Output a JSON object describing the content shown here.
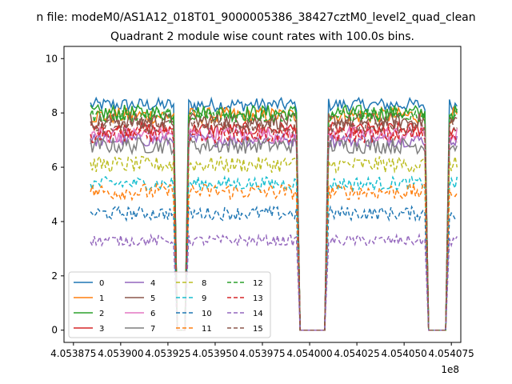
{
  "chart_data": {
    "type": "line",
    "suptitle": "n file: modeM0/AS1A12_018T01_9000005386_38427cztM0_level2_quad_clean",
    "title": "Quadrant 2 module wise count rates with 100.0s bins.",
    "xlabel": "",
    "ylabel": "",
    "x_offset_label": "1e8",
    "xlim": [
      405387000,
      405408000
    ],
    "ylim": [
      -0.45,
      10.45
    ],
    "xticks": [
      {
        "value": 405387500,
        "label": "4.053875"
      },
      {
        "value": 405390000,
        "label": "4.053900"
      },
      {
        "value": 405392500,
        "label": "4.053925"
      },
      {
        "value": 405395000,
        "label": "4.053950"
      },
      {
        "value": 405397500,
        "label": "4.053975"
      },
      {
        "value": 405400000,
        "label": "4.054000"
      },
      {
        "value": 405402500,
        "label": "4.054025"
      },
      {
        "value": 405405000,
        "label": "4.054050"
      },
      {
        "value": 405407500,
        "label": "4.054075"
      }
    ],
    "yticks": [
      {
        "value": 0,
        "label": "0"
      },
      {
        "value": 2,
        "label": "2"
      },
      {
        "value": 4,
        "label": "4"
      },
      {
        "value": 6,
        "label": "6"
      },
      {
        "value": 8,
        "label": "8"
      },
      {
        "value": 10,
        "label": "10"
      }
    ],
    "grid": false,
    "legend_position": "lower-left",
    "x_start": 405388400,
    "x_step": 100,
    "segments": [
      {
        "from": 405388400,
        "to": 405392800,
        "state": "on"
      },
      {
        "from": 405393000,
        "to": 405393400,
        "state": "off"
      },
      {
        "from": 405393600,
        "to": 405399300,
        "state": "on"
      },
      {
        "from": 405399500,
        "to": 405400800,
        "state": "off"
      },
      {
        "from": 405401000,
        "to": 405406100,
        "state": "on"
      },
      {
        "from": 405406300,
        "to": 405407200,
        "state": "off"
      },
      {
        "from": 405407400,
        "to": 405407800,
        "state": "on"
      }
    ],
    "series": [
      {
        "name": "0",
        "color": "#1f77b4",
        "dash": "solid",
        "level": 8.3,
        "noise": 0.25
      },
      {
        "name": "1",
        "color": "#ff7f0e",
        "dash": "solid",
        "level": 7.9,
        "noise": 0.3
      },
      {
        "name": "2",
        "color": "#2ca02c",
        "dash": "solid",
        "level": 8.0,
        "noise": 0.3
      },
      {
        "name": "3",
        "color": "#d62728",
        "dash": "solid",
        "level": 7.4,
        "noise": 0.25
      },
      {
        "name": "4",
        "color": "#9467bd",
        "dash": "solid",
        "level": 7.0,
        "noise": 0.25
      },
      {
        "name": "5",
        "color": "#8c564b",
        "dash": "solid",
        "level": 7.7,
        "noise": 0.3
      },
      {
        "name": "6",
        "color": "#e377c2",
        "dash": "solid",
        "level": 7.2,
        "noise": 0.3
      },
      {
        "name": "7",
        "color": "#7f7f7f",
        "dash": "solid",
        "level": 6.8,
        "noise": 0.3
      },
      {
        "name": "8",
        "color": "#bcbd22",
        "dash": "dashed",
        "level": 6.1,
        "noise": 0.3
      },
      {
        "name": "9",
        "color": "#17becf",
        "dash": "dashed",
        "level": 5.4,
        "noise": 0.25
      },
      {
        "name": "10",
        "color": "#1f77b4",
        "dash": "dashed",
        "level": 4.3,
        "noise": 0.25
      },
      {
        "name": "11",
        "color": "#ff7f0e",
        "dash": "dashed",
        "level": 5.1,
        "noise": 0.3
      },
      {
        "name": "12",
        "color": "#2ca02c",
        "dash": "dashed",
        "level": 7.9,
        "noise": 0.25
      },
      {
        "name": "13",
        "color": "#d62728",
        "dash": "dashed",
        "level": 7.2,
        "noise": 0.3
      },
      {
        "name": "14",
        "color": "#9467bd",
        "dash": "dashed",
        "level": 3.3,
        "noise": 0.2
      },
      {
        "name": "15",
        "color": "#8c564b",
        "dash": "dashed",
        "level": 7.5,
        "noise": 0.3
      }
    ]
  }
}
